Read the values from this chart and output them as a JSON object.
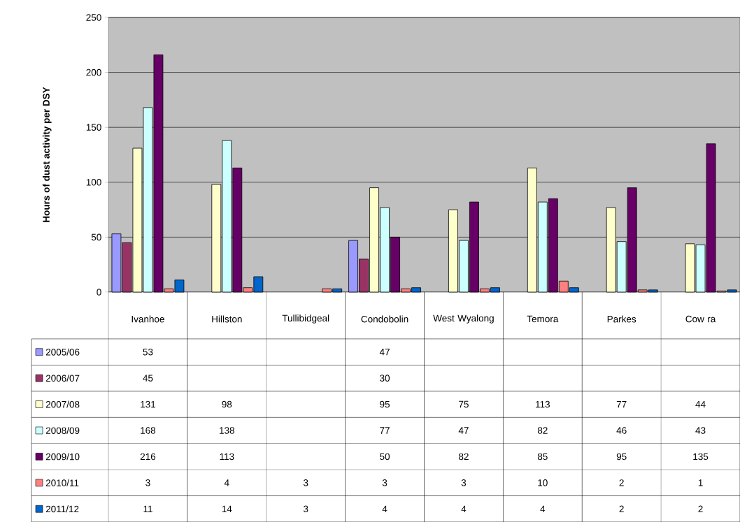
{
  "chart_data": {
    "type": "bar",
    "ylabel": "Hours of dust activity per DSY",
    "categories": [
      "Ivanhoe",
      "Hillston",
      "Tullibidgeal",
      "Condobolin",
      "West Wyalong",
      "Temora",
      "Parkes",
      "Cow ra"
    ],
    "series": [
      {
        "name": "2005/06",
        "color": "#9999ff",
        "values": [
          53,
          null,
          null,
          47,
          null,
          null,
          null,
          null
        ]
      },
      {
        "name": "2006/07",
        "color": "#993366",
        "values": [
          45,
          null,
          null,
          30,
          null,
          null,
          null,
          null
        ]
      },
      {
        "name": "2007/08",
        "color": "#ffffcc",
        "values": [
          131,
          98,
          null,
          95,
          75,
          113,
          77,
          44
        ]
      },
      {
        "name": "2008/09",
        "color": "#ccffff",
        "values": [
          168,
          138,
          null,
          77,
          47,
          82,
          46,
          43
        ]
      },
      {
        "name": "2009/10",
        "color": "#660066",
        "values": [
          216,
          113,
          null,
          50,
          82,
          85,
          95,
          135
        ]
      },
      {
        "name": "2010/11",
        "color": "#ff8080",
        "values": [
          3,
          4,
          3,
          3,
          3,
          10,
          2,
          1
        ]
      },
      {
        "name": "2011/12",
        "color": "#0066cc",
        "values": [
          11,
          14,
          3,
          4,
          4,
          4,
          2,
          2
        ]
      }
    ],
    "ylim": [
      0,
      250
    ],
    "yticks": [
      0,
      50,
      100,
      150,
      200,
      250
    ],
    "grid": "y",
    "legend": "bottom",
    "data_labels": true
  }
}
